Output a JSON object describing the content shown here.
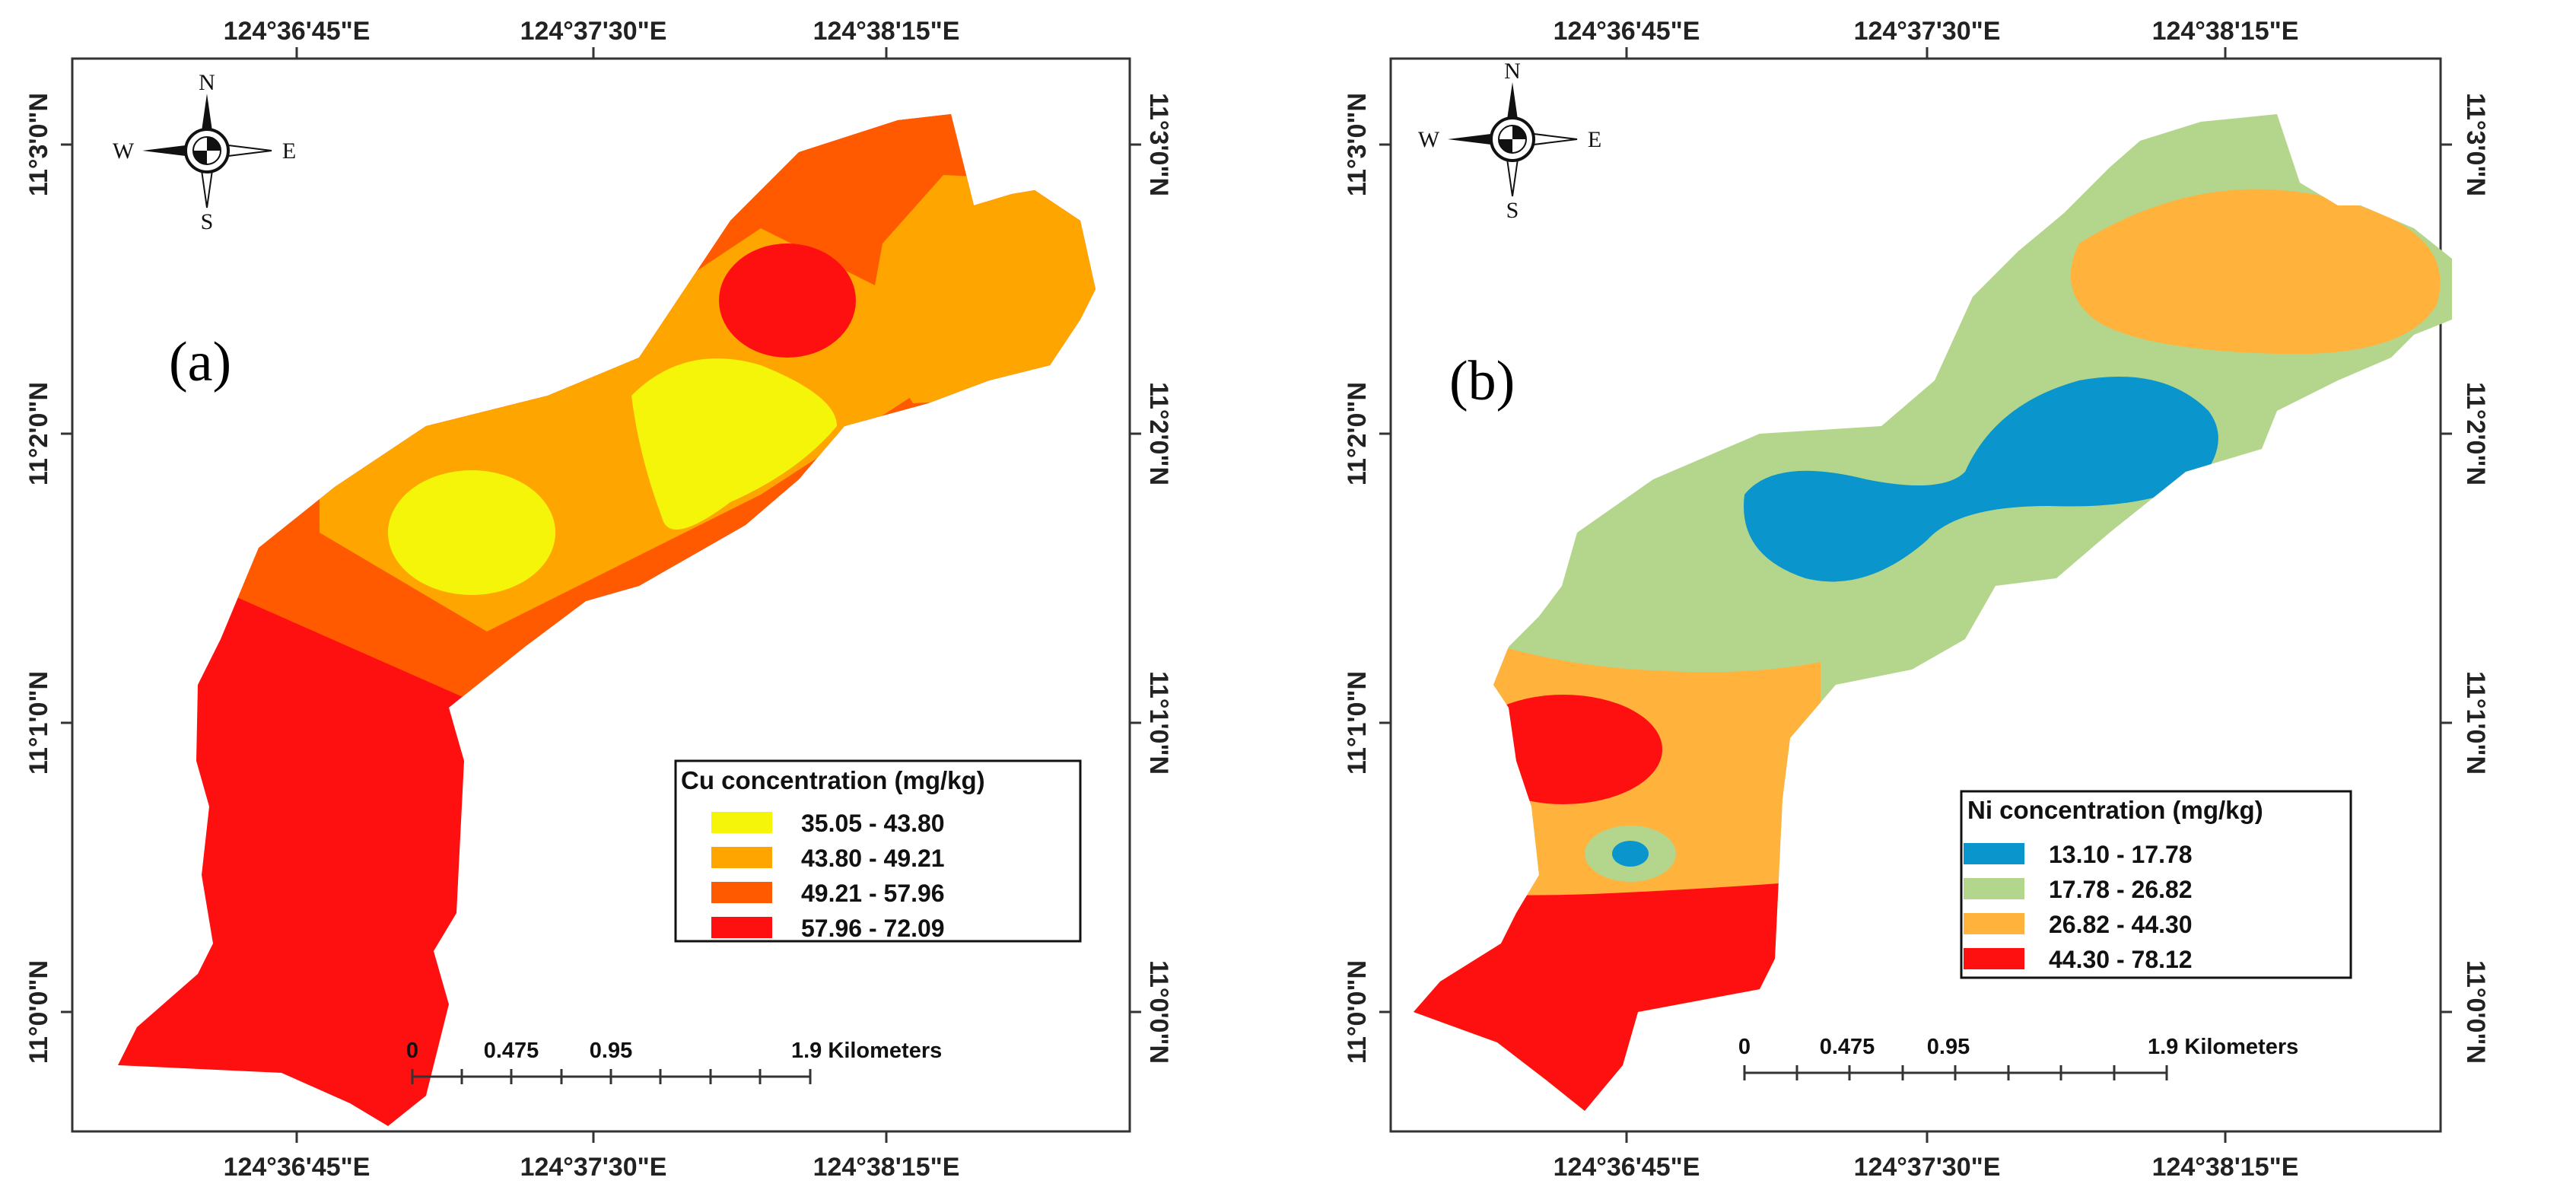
{
  "panel_a": {
    "label": "(a)",
    "top_ticks": [
      "124°36'45\"E",
      "124°37'30\"E",
      "124°38'15\"E"
    ],
    "bottom_ticks": [
      "124°36'45\"E",
      "124°37'30\"E",
      "124°38'15\"E"
    ],
    "left_ticks": [
      "11°3'0\"N",
      "11°2'0\"N",
      "11°1'0\"N",
      "11°0'0\"N"
    ],
    "right_ticks": [
      "11°3'0\"N",
      "11°2'0\"N",
      "11°1'0\"N",
      "11°0'0\"N"
    ],
    "compass": {
      "n": "N",
      "s": "S",
      "e": "E",
      "w": "W"
    },
    "legend": {
      "title": "Cu concentration (mg/kg)",
      "items": [
        {
          "label": "35.05 - 43.80",
          "color": "#f5f50a"
        },
        {
          "label": "43.80 - 49.21",
          "color": "#ffa500"
        },
        {
          "label": "49.21 - 57.96",
          "color": "#ff5a00"
        },
        {
          "label": "57.96 - 72.09",
          "color": "#ff1010"
        }
      ]
    },
    "scale": {
      "labels": [
        "0",
        "0.475",
        "0.95",
        "1.9 Kilometers"
      ]
    }
  },
  "panel_b": {
    "label": "(b)",
    "top_ticks": [
      "124°36'45\"E",
      "124°37'30\"E",
      "124°38'15\"E"
    ],
    "bottom_ticks": [
      "124°36'45\"E",
      "124°37'30\"E",
      "124°38'15\"E"
    ],
    "left_ticks": [
      "11°3'0\"N",
      "11°2'0\"N",
      "11°1'0\"N",
      "11°0'0\"N"
    ],
    "right_ticks": [
      "11°3'0\"N",
      "11°2'0\"N",
      "11°1'0\"N",
      "11°0'0\"N"
    ],
    "compass": {
      "n": "N",
      "s": "S",
      "e": "E",
      "w": "W"
    },
    "legend": {
      "title": "Ni concentration (mg/kg)",
      "items": [
        {
          "label": "13.10 - 17.78",
          "color": "#0a96cc"
        },
        {
          "label": "17.78 - 26.82",
          "color": "#b4d68c"
        },
        {
          "label": "26.82 - 44.30",
          "color": "#ffb23c"
        },
        {
          "label": "44.30 - 78.12",
          "color": "#ff1010"
        }
      ]
    },
    "scale": {
      "labels": [
        "0",
        "0.475",
        "0.95",
        "1.9 Kilometers"
      ]
    }
  }
}
